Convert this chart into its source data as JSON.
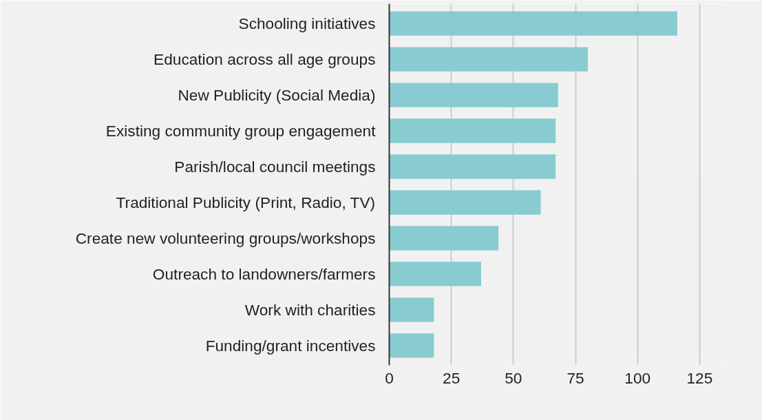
{
  "chart_data": {
    "type": "bar",
    "orientation": "horizontal",
    "categories": [
      "Schooling initiatives",
      "Education across all age groups",
      "New Publicity (Social Media)",
      "Existing community group engagement",
      "Parish/local council meetings",
      "Traditional Publicity (Print, Radio, TV)",
      "Create new volunteering groups/workshops",
      "Outreach to landowners/farmers",
      "Work with charities",
      "Funding/grant incentives"
    ],
    "values": [
      116,
      80,
      68,
      67,
      67,
      61,
      44,
      37,
      18,
      18
    ],
    "color": "#88ccd1",
    "xlim": [
      0,
      135
    ],
    "xticks": [
      0,
      25,
      50,
      75,
      100,
      125
    ],
    "grid": "x"
  }
}
